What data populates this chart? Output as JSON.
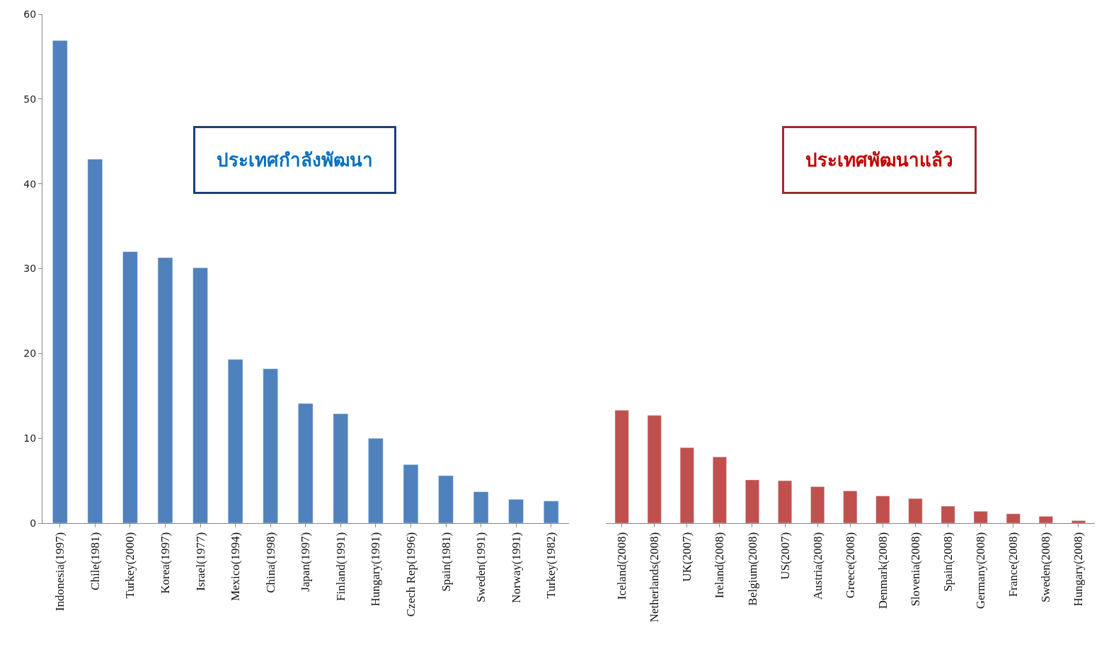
{
  "chart_data": [
    {
      "type": "bar",
      "categories": [
        "Indonesia(1997)",
        "Chile(1981)",
        "Turkey(2000)",
        "Korea(1997)",
        "Israel(1977)",
        "Mexico(1994)",
        "China(1998)",
        "Japan(1997)",
        "Finland(1991)",
        "Hungary(1991)",
        "Czech Rep(1996)",
        "Spain(1981)",
        "Sweden(1991)",
        "Norway(1991)",
        "Turkey(1982)"
      ],
      "values": [
        56.9,
        42.9,
        32.0,
        31.3,
        30.1,
        19.3,
        18.2,
        14.1,
        12.9,
        10.0,
        6.9,
        5.6,
        3.7,
        2.8,
        2.6
      ],
      "color": "#4f81bd",
      "ylim": [
        0,
        60
      ],
      "yticks": [
        0,
        10,
        20,
        30,
        40,
        50,
        60
      ],
      "annotations": [
        "ประเทศกำลังพัฒนา"
      ]
    },
    {
      "type": "bar",
      "categories": [
        "Iceland(2008)",
        "Netherlands(2008)",
        "UK(2007)",
        "Ireland(2008)",
        "Belgium(2008)",
        "US(2007)",
        "Austria(2008)",
        "Greece(2008)",
        "Denmark(2008)",
        "Slovenia(2008)",
        "Spain(2008)",
        "Germany(2008)",
        "France(2008)",
        "Sweden(2008)",
        "Hungary(2008)"
      ],
      "values": [
        13.3,
        12.7,
        8.9,
        7.8,
        5.1,
        5.0,
        4.3,
        3.8,
        3.2,
        2.9,
        2.0,
        1.4,
        1.1,
        0.8,
        0.3
      ],
      "color": "#c0504d",
      "ylim": [
        0,
        60
      ],
      "yticks": [
        0,
        10,
        20,
        30,
        40,
        50,
        60
      ],
      "tick_labels": "x",
      "annotations": [
        "ประเทศพัฒนาแล้ว"
      ]
    }
  ]
}
